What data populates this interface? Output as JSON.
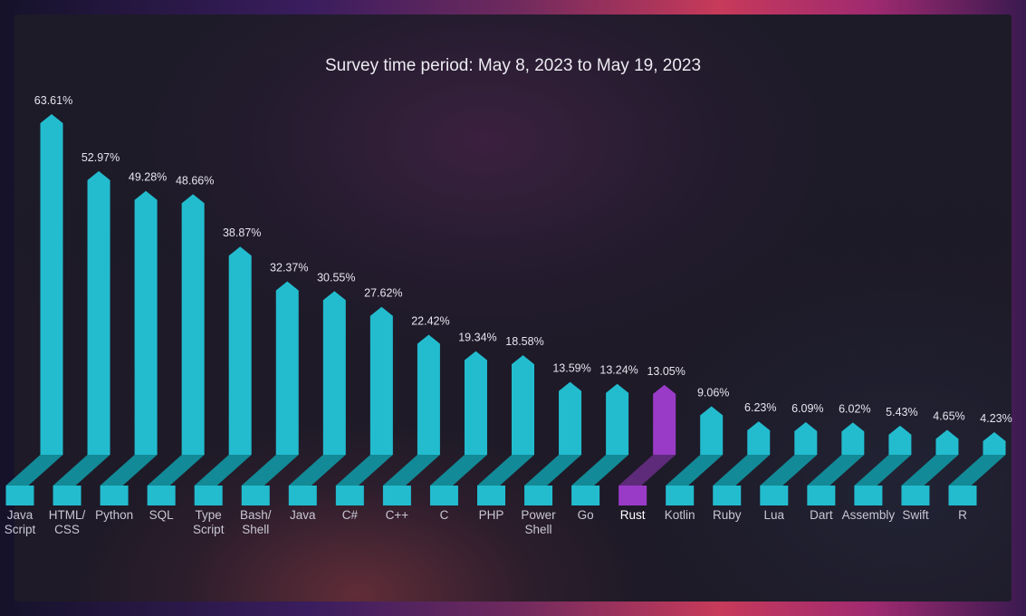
{
  "chart_data": {
    "type": "bar",
    "title": "Survey time period:  May 8, 2023 to May 19, 2023",
    "xlabel": "",
    "ylabel": "",
    "ylim": [
      0,
      70
    ],
    "grid": false,
    "categories": [
      [
        "Java",
        "Script"
      ],
      [
        "HTML/",
        "CSS"
      ],
      [
        "Python"
      ],
      [
        "SQL"
      ],
      [
        "Type",
        "Script"
      ],
      [
        "Bash/",
        "Shell"
      ],
      [
        "Java"
      ],
      [
        "C#"
      ],
      [
        "C++"
      ],
      [
        "C"
      ],
      [
        "PHP"
      ],
      [
        "Power",
        "Shell"
      ],
      [
        "Go"
      ],
      [
        "Rust"
      ],
      [
        "Kotlin"
      ],
      [
        "Ruby"
      ],
      [
        "Lua"
      ],
      [
        "Dart"
      ],
      [
        "Assembly"
      ],
      [
        "Swift"
      ],
      [
        "R"
      ]
    ],
    "values": [
      63.61,
      52.97,
      49.28,
      48.66,
      38.87,
      32.37,
      30.55,
      27.62,
      22.42,
      19.34,
      18.58,
      13.59,
      13.24,
      13.05,
      9.06,
      6.23,
      6.09,
      6.02,
      5.43,
      4.65,
      4.23
    ],
    "value_labels": [
      "63.61%",
      "52.97%",
      "49.28%",
      "48.66%",
      "38.87%",
      "32.37%",
      "30.55%",
      "27.62%",
      "22.42%",
      "19.34%",
      "18.58%",
      "13.59%",
      "13.24%",
      "13.05%",
      "9.06%",
      "6.23%",
      "6.09%",
      "6.02%",
      "5.43%",
      "4.65%",
      "4.23%"
    ],
    "highlight_index": 13,
    "colors": {
      "bar": "#23bccf",
      "bar_base_dark": "#138a97",
      "highlight": "#9a3bc8",
      "highlight_base_dark": "#5e2a7a"
    }
  }
}
